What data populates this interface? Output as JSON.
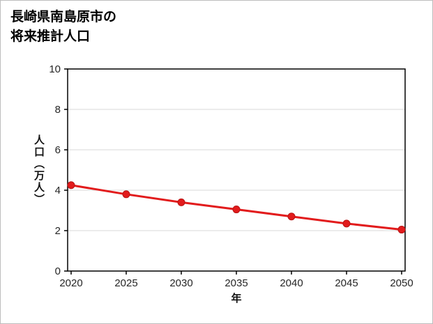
{
  "title": {
    "line1": "長崎県南島原市の",
    "line2": "将来推計人口"
  },
  "chart_data": {
    "type": "line",
    "title": "長崎県南島原市の将来推計人口",
    "x": [
      2020,
      2025,
      2030,
      2035,
      2040,
      2045,
      2050
    ],
    "values": [
      4.25,
      3.8,
      3.4,
      3.05,
      2.7,
      2.35,
      2.05
    ],
    "xlabel": "年",
    "ylabel": "人口（万人）",
    "xticks": [
      2020,
      2025,
      2030,
      2035,
      2040,
      2045,
      2050
    ],
    "yticks": [
      0,
      2,
      4,
      6,
      8,
      10
    ],
    "xlim": [
      2020,
      2050
    ],
    "ylim": [
      0,
      10
    ],
    "grid": true,
    "legend": false,
    "colors": {
      "line": "#e21b1c",
      "marker": "#e21b1c",
      "marker_edge": "#b91414",
      "grid": "#d9d9d9",
      "frame": "#000000",
      "tick_label": "#262626"
    }
  }
}
